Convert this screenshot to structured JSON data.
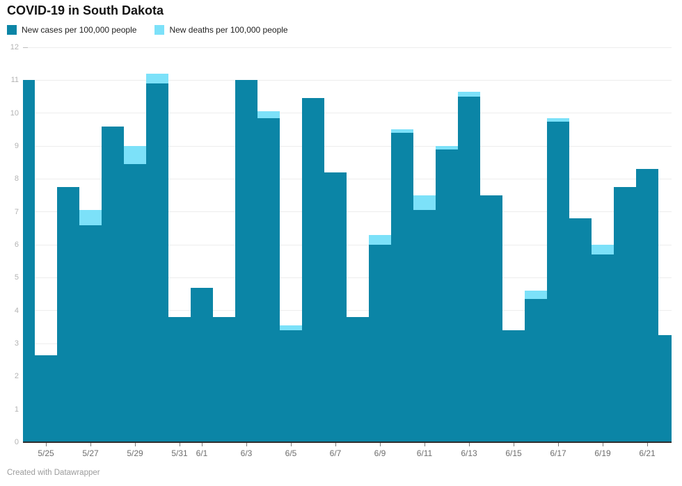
{
  "title": "COVID-19 in South Dakota",
  "legend": {
    "items": [
      {
        "label": "New cases per 100,000 people",
        "color": "#0b85a6"
      },
      {
        "label": "New deaths per 100,000 people",
        "color": "#7ce1f9"
      }
    ]
  },
  "footer": {
    "credit": "Created with Datawrapper"
  },
  "chart_data": {
    "type": "bar",
    "stacked": true,
    "title": "COVID-19 in South Dakota",
    "xlabel": "",
    "ylabel": "",
    "ylim": [
      0,
      12
    ],
    "grid": true,
    "legend_position": "top-left",
    "x": [
      "5/24",
      "5/25",
      "5/26",
      "5/27",
      "5/28",
      "5/29",
      "5/30",
      "5/31",
      "6/1",
      "6/2",
      "6/3",
      "6/4",
      "6/5",
      "6/6",
      "6/7",
      "6/8",
      "6/9",
      "6/10",
      "6/11",
      "6/12",
      "6/13",
      "6/14",
      "6/15",
      "6/16",
      "6/17",
      "6/18",
      "6/19",
      "6/20",
      "6/21",
      "6/22"
    ],
    "series": [
      {
        "name": "New cases per 100,000 people",
        "color": "#0b85a6",
        "values": [
          11.0,
          2.65,
          7.75,
          6.6,
          9.6,
          8.45,
          10.9,
          3.8,
          4.7,
          3.8,
          11.0,
          9.85,
          3.4,
          10.45,
          8.2,
          3.8,
          6.0,
          9.4,
          7.05,
          8.9,
          10.5,
          7.5,
          3.4,
          4.35,
          9.75,
          6.8,
          5.7,
          7.75,
          8.3,
          3.25
        ]
      },
      {
        "name": "New deaths per 100,000 people",
        "color": "#7ce1f9",
        "values": [
          0,
          0,
          0,
          0.45,
          0,
          0.55,
          0.3,
          0,
          0,
          0,
          0,
          0.2,
          0.15,
          0,
          0,
          0,
          0.3,
          0.1,
          0.45,
          0.1,
          0.15,
          0,
          0,
          0.25,
          0.1,
          0,
          0.3,
          0,
          0,
          0
        ]
      }
    ],
    "yticks": [
      0,
      1,
      2,
      3,
      4,
      5,
      6,
      7,
      8,
      9,
      10,
      11,
      12
    ],
    "xticks": [
      {
        "label": "5/25",
        "day": 1
      },
      {
        "label": "5/27",
        "day": 3
      },
      {
        "label": "5/29",
        "day": 5
      },
      {
        "label": "5/31",
        "day": 7
      },
      {
        "label": "6/1",
        "day": 8
      },
      {
        "label": "6/3",
        "day": 10
      },
      {
        "label": "6/5",
        "day": 12
      },
      {
        "label": "6/7",
        "day": 14
      },
      {
        "label": "6/9",
        "day": 16
      },
      {
        "label": "6/11",
        "day": 18
      },
      {
        "label": "6/13",
        "day": 20
      },
      {
        "label": "6/15",
        "day": 22
      },
      {
        "label": "6/17",
        "day": 24
      },
      {
        "label": "6/19",
        "day": 26
      },
      {
        "label": "6/21",
        "day": 28
      }
    ]
  }
}
